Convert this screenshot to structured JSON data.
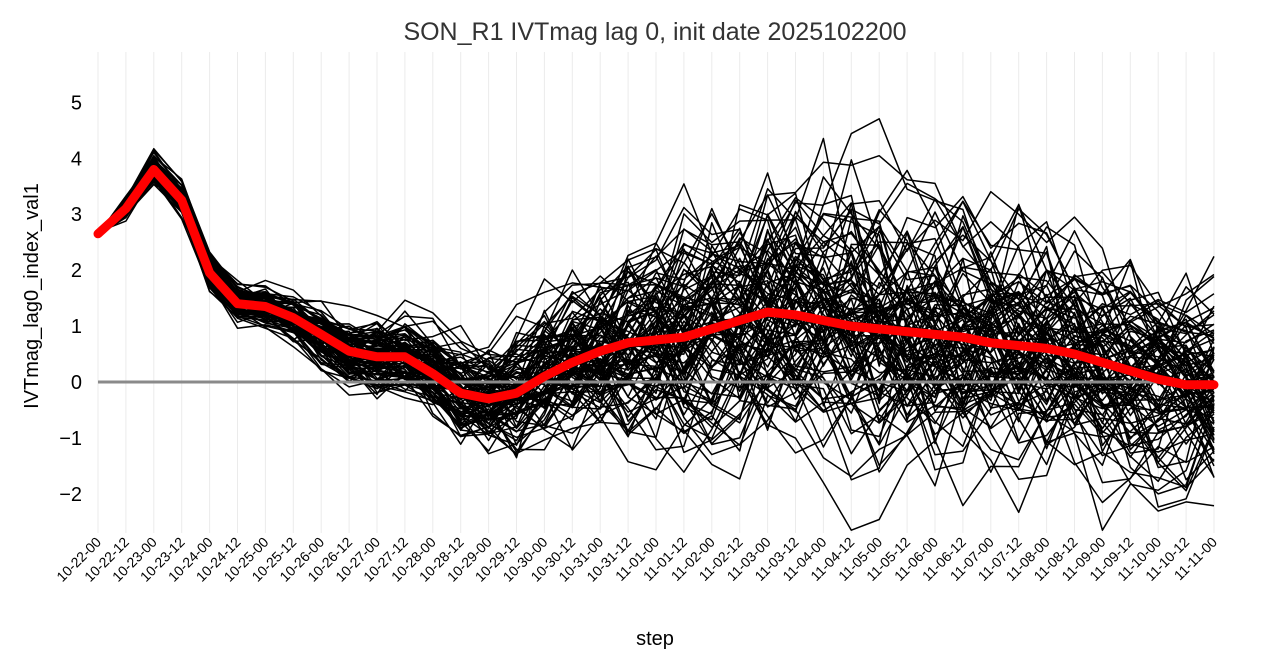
{
  "chart_data": {
    "type": "line",
    "title": "SON_R1 IVTmag lag 0, init date 2025102200",
    "xlabel": "step",
    "ylabel": "IVTmag_lag0_index_val1",
    "x": [
      "10-22-00",
      "10-22-12",
      "10-23-00",
      "10-23-12",
      "10-24-00",
      "10-24-12",
      "10-25-00",
      "10-25-12",
      "10-26-00",
      "10-26-12",
      "10-27-00",
      "10-27-12",
      "10-28-00",
      "10-28-12",
      "10-29-00",
      "10-29-12",
      "10-30-00",
      "10-30-12",
      "10-31-00",
      "10-31-12",
      "11-01-00",
      "11-01-12",
      "11-02-00",
      "11-02-12",
      "11-03-00",
      "11-03-12",
      "11-04-00",
      "11-04-12",
      "11-05-00",
      "11-05-12",
      "11-06-00",
      "11-06-12",
      "11-07-00",
      "11-07-12",
      "11-08-00",
      "11-08-12",
      "11-09-00",
      "11-09-12",
      "11-10-00",
      "11-10-12",
      "11-11-00"
    ],
    "ylim": [
      -2.7,
      5.9
    ],
    "yticks": [
      -2,
      -1,
      0,
      1,
      2,
      3,
      4,
      5
    ],
    "grid": true,
    "reference_line": 0,
    "colors": {
      "members": "#000000",
      "mean": "#ff0000",
      "reference": "#8a8a8a",
      "grid": "#ebebeb"
    },
    "mean_series": {
      "values": [
        2.65,
        3.1,
        3.8,
        3.25,
        1.95,
        1.4,
        1.35,
        1.15,
        0.85,
        0.55,
        0.45,
        0.45,
        0.15,
        -0.2,
        -0.3,
        -0.2,
        0.1,
        0.35,
        0.55,
        0.7,
        0.75,
        0.8,
        0.95,
        1.1,
        1.25,
        1.2,
        1.1,
        1.0,
        0.95,
        0.9,
        0.85,
        0.8,
        0.7,
        0.65,
        0.6,
        0.5,
        0.35,
        0.2,
        0.05,
        -0.05,
        -0.05
      ]
    },
    "ensemble": {
      "member_count": 100,
      "start": 2.65,
      "initial_spread": [
        0.05,
        0.15,
        0.2,
        0.15,
        0.2,
        0.2,
        0.2,
        0.25,
        0.3,
        0.35,
        0.4,
        0.45,
        0.5,
        0.55,
        0.6,
        0.7,
        0.8,
        0.9,
        1.0,
        1.05,
        1.1,
        1.15,
        1.2,
        1.25,
        1.3,
        1.3,
        1.3,
        1.3,
        1.3,
        1.3,
        1.3,
        1.25,
        1.25,
        1.2,
        1.2,
        1.15,
        1.1,
        1.1,
        1.05,
        1.0,
        1.0
      ],
      "range_min": -2.65,
      "range_max": 5.85
    }
  }
}
